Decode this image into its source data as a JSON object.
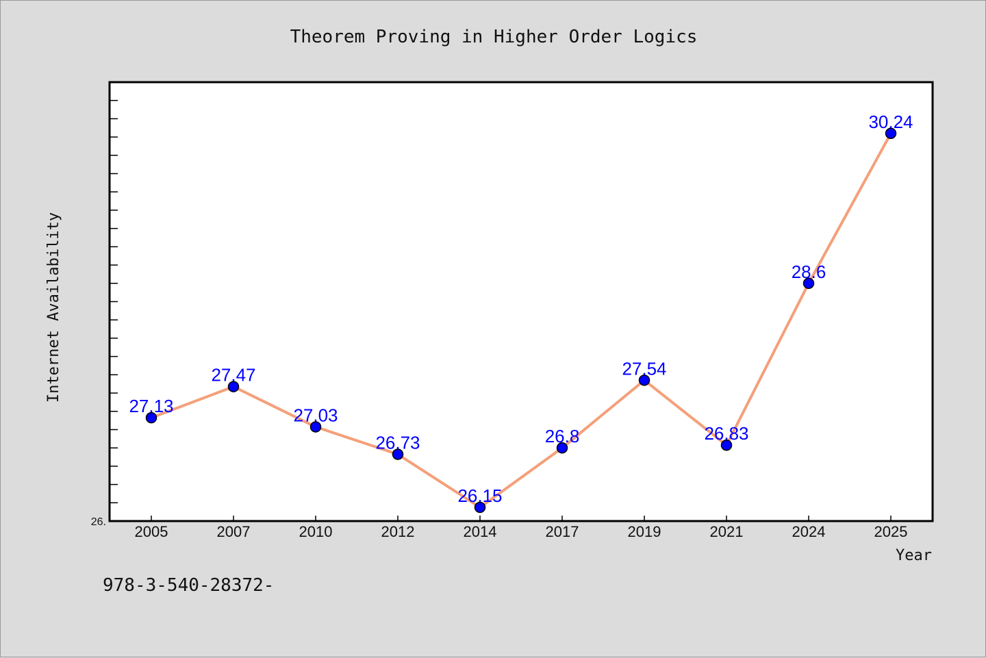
{
  "chart_data": {
    "type": "line",
    "title": "Theorem Proving in Higher Order Logics",
    "xlabel": "Year",
    "ylabel": "Internet Availability",
    "categories": [
      "2005",
      "2007",
      "2010",
      "2012",
      "2014",
      "2017",
      "2019",
      "2021",
      "2024",
      "2025"
    ],
    "series": [
      {
        "values": [
          27.13,
          27.47,
          27.03,
          26.73,
          26.15,
          26.8,
          27.54,
          26.83,
          28.6,
          30.24
        ],
        "labels": [
          "27.13",
          "27.47",
          "27.03",
          "26.73",
          "26.15",
          "26.8",
          "27.54",
          "26.83",
          "28.6",
          "30.24"
        ],
        "line_color": "#f4a07a",
        "marker_color": "#0000ff"
      }
    ],
    "ylim": [
      26.0,
      30.8
    ],
    "y_min_tick_label": "26.",
    "grid": false,
    "legend": "none"
  },
  "footer_text": "978-3-540-28372-"
}
